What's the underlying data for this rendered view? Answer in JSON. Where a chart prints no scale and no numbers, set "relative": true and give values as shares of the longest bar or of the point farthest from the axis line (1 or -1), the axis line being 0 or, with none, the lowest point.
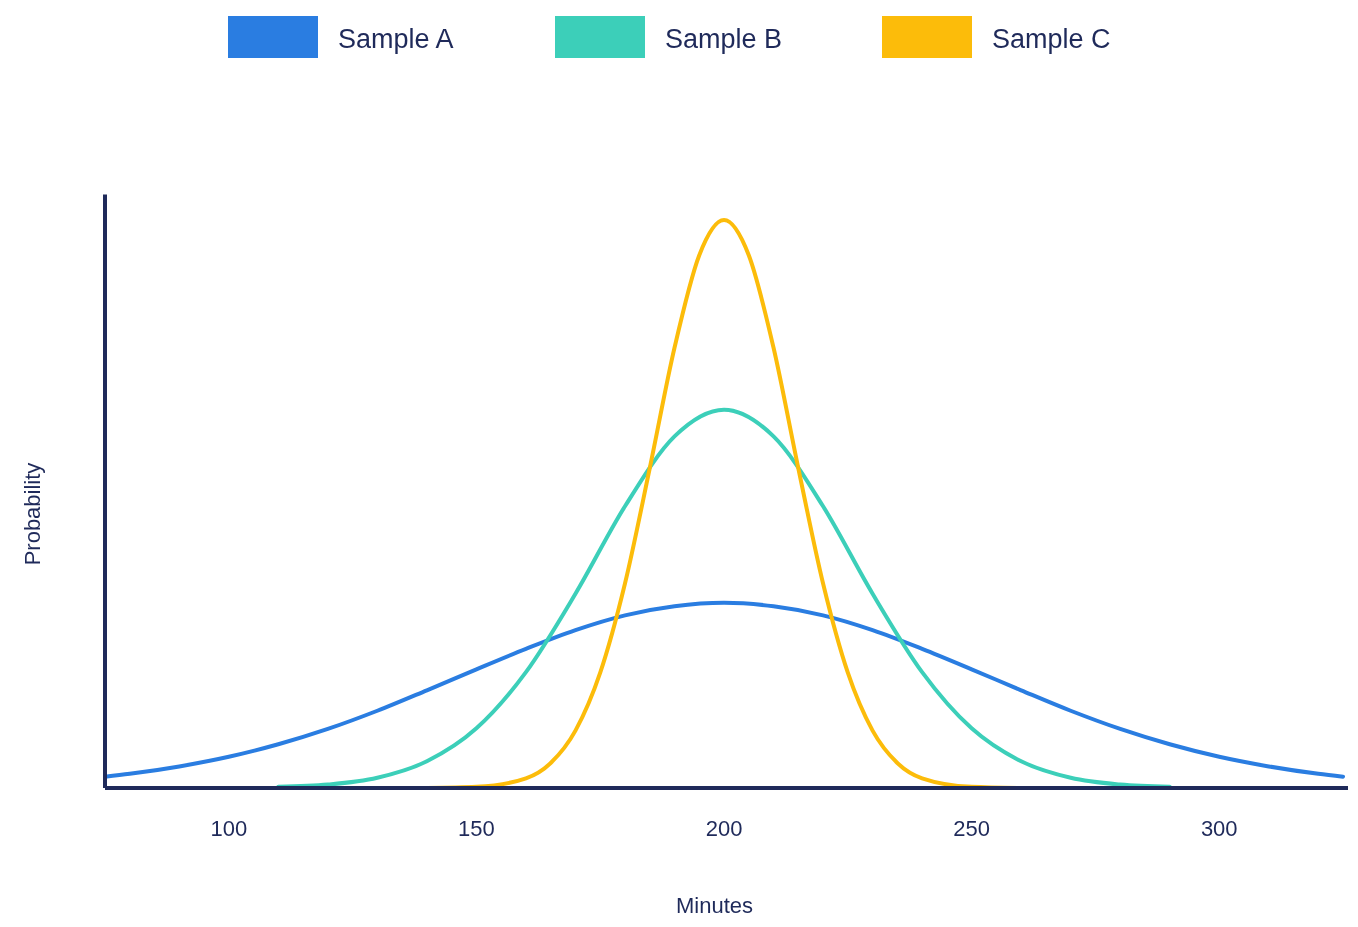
{
  "chart_data": {
    "type": "line",
    "xlabel": "Minutes",
    "ylabel": "Probability",
    "relative": true,
    "xlim": [
      75,
      326
    ],
    "xticks": [
      100,
      150,
      200,
      250,
      300
    ],
    "legend": "top",
    "series": [
      {
        "name": "Sample A",
        "color": "#2a7de1",
        "x": [
          75,
          80,
          90,
          100,
          110,
          120,
          130,
          140,
          150,
          160,
          170,
          180,
          190,
          200,
          210,
          220,
          230,
          240,
          250,
          260,
          270,
          280,
          290,
          300,
          310,
          320,
          325
        ],
        "values": [
          0.02,
          0.025,
          0.038,
          0.055,
          0.077,
          0.104,
          0.136,
          0.172,
          0.209,
          0.245,
          0.278,
          0.304,
          0.32,
          0.326,
          0.32,
          0.304,
          0.278,
          0.245,
          0.209,
          0.172,
          0.136,
          0.104,
          0.077,
          0.055,
          0.038,
          0.025,
          0.02
        ]
      },
      {
        "name": "Sample B",
        "color": "#3ccfb9",
        "x": [
          110,
          120,
          130,
          140,
          150,
          160,
          170,
          180,
          190,
          200,
          210,
          220,
          230,
          240,
          250,
          260,
          270,
          280,
          290
        ],
        "values": [
          0.002,
          0.006,
          0.018,
          0.047,
          0.105,
          0.204,
          0.342,
          0.496,
          0.619,
          0.666,
          0.619,
          0.496,
          0.342,
          0.204,
          0.105,
          0.047,
          0.018,
          0.006,
          0.002
        ]
      },
      {
        "name": "Sample C",
        "color": "#fcbc0a",
        "x": [
          140,
          150,
          160,
          165,
          170,
          175,
          180,
          185,
          190,
          195,
          200,
          205,
          210,
          215,
          220,
          225,
          230,
          235,
          240,
          250,
          260
        ],
        "values": [
          0,
          0.002,
          0.017,
          0.044,
          0.101,
          0.203,
          0.36,
          0.563,
          0.775,
          0.938,
          1,
          0.938,
          0.775,
          0.563,
          0.36,
          0.203,
          0.101,
          0.044,
          0.017,
          0.002,
          0
        ]
      }
    ]
  }
}
